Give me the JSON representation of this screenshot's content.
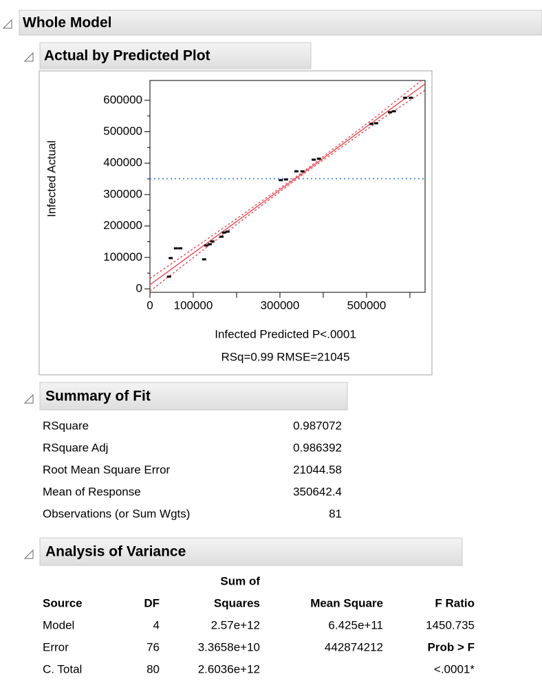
{
  "sections": {
    "whole_model": "Whole Model",
    "plot": "Actual by Predicted Plot",
    "summary": "Summary of Fit",
    "anova": "Analysis of Variance"
  },
  "chart_data": {
    "type": "scatter",
    "x_label": "Infected Predicted P<.0001",
    "subtitle": "RSq=0.99 RMSE=21045",
    "y_label": "Infected Actual",
    "color": "#000000",
    "x": [
      44000,
      48000,
      60000,
      70000,
      125000,
      130000,
      138000,
      144000,
      165000,
      171000,
      179000,
      302000,
      314000,
      338000,
      352000,
      378000,
      390000,
      511000,
      522000,
      554000,
      563000,
      589000,
      602000
    ],
    "y": [
      39000,
      98000,
      129000,
      129000,
      94000,
      138000,
      142000,
      151000,
      166000,
      179000,
      182000,
      346000,
      348000,
      374000,
      374000,
      411000,
      414000,
      525000,
      527000,
      562000,
      565000,
      608000,
      608000
    ],
    "fit": {
      "color": "#e8555f",
      "x": [
        0,
        635000
      ],
      "y": [
        13000,
        652000
      ]
    },
    "band": {
      "color": "#e8555f",
      "x": [
        0,
        175000,
        350000,
        525000,
        635000
      ],
      "lower": [
        -7000,
        179000,
        361000,
        531000,
        632000
      ],
      "upper": [
        33000,
        199000,
        369000,
        551000,
        672000
      ]
    },
    "mean_line": {
      "color": "#5b8fe8",
      "value": 350642.4
    },
    "xlim": [
      0,
      635000
    ],
    "ylim": [
      -11000,
      663000
    ],
    "xticks": [
      0,
      100000,
      300000,
      500000
    ],
    "xminorticks": [
      200000,
      400000,
      600000
    ],
    "yticks": [
      0,
      100000,
      200000,
      300000,
      400000,
      500000,
      600000
    ],
    "yminorticks": [
      50000,
      150000,
      250000,
      350000,
      450000,
      550000
    ]
  },
  "summary": {
    "rows": [
      [
        "RSquare",
        "0.987072"
      ],
      [
        "RSquare Adj",
        "0.986392"
      ],
      [
        "Root Mean Square Error",
        "21044.58"
      ],
      [
        "Mean of Response",
        "350642.4"
      ],
      [
        "Observations (or Sum Wgts)",
        "81"
      ]
    ]
  },
  "anova": {
    "header_top": "Sum of",
    "columns": [
      "Source",
      "DF",
      "Squares",
      "Mean Square",
      "F Ratio"
    ],
    "rows": [
      {
        "source": "Model",
        "df": "4",
        "ss": "2.57e+12",
        "ms": "6.425e+11",
        "f": "1450.735"
      },
      {
        "source": "Error",
        "df": "76",
        "ss": "3.3658e+10",
        "ms": "442874212",
        "f": "Prob > F"
      },
      {
        "source": "C. Total",
        "df": "80",
        "ss": "2.6036e+12",
        "f": "<.0001*"
      }
    ]
  }
}
